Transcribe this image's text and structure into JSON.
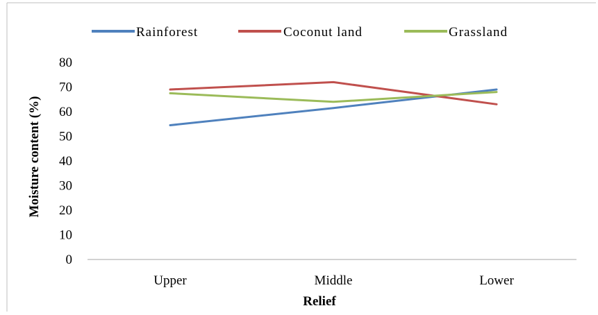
{
  "chart_data": {
    "type": "line",
    "title": "",
    "xlabel": "Relief",
    "ylabel": "Moisture content (%)",
    "categories": [
      "Upper",
      "Middle",
      "Lower"
    ],
    "ylim": [
      0,
      80
    ],
    "yticks": [
      0,
      10,
      20,
      30,
      40,
      50,
      60,
      70,
      80
    ],
    "grid": false,
    "legend_position": "top",
    "series": [
      {
        "name": "Rainforest",
        "color": "#4F81BD",
        "values": [
          54.5,
          61.5,
          69
        ]
      },
      {
        "name": "Coconut land",
        "color": "#C0504D",
        "values": [
          69,
          72,
          63
        ]
      },
      {
        "name": "Grassland",
        "color": "#9BBB59",
        "values": [
          67.5,
          64,
          68
        ]
      }
    ]
  }
}
